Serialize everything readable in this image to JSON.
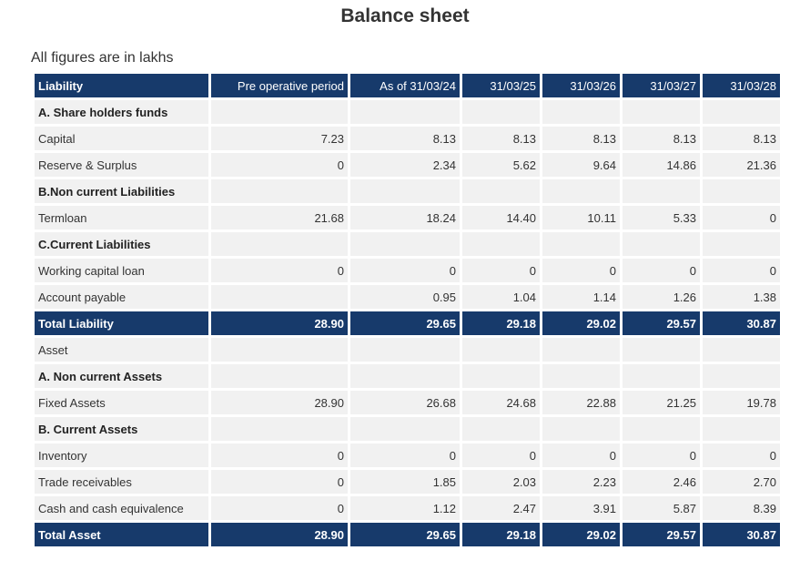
{
  "title": "Balance sheet",
  "note": "All figures are in lakhs",
  "columns": [
    "Liability",
    "Pre operative period",
    "As of 31/03/24",
    "31/03/25",
    "31/03/26",
    "31/03/27",
    "31/03/28"
  ],
  "rows": [
    {
      "kind": "section",
      "label": "A. Share holders funds",
      "values": [
        "",
        "",
        "",
        "",
        "",
        ""
      ]
    },
    {
      "kind": "row",
      "label": "Capital",
      "values": [
        "7.23",
        "8.13",
        "8.13",
        "8.13",
        "8.13",
        "8.13"
      ]
    },
    {
      "kind": "row",
      "label": "Reserve & Surplus",
      "values": [
        "0",
        "2.34",
        "5.62",
        "9.64",
        "14.86",
        "21.36"
      ]
    },
    {
      "kind": "section",
      "label": "B.Non current Liabilities",
      "values": [
        "",
        "",
        "",
        "",
        "",
        ""
      ]
    },
    {
      "kind": "row",
      "label": "Termloan",
      "values": [
        "21.68",
        "18.24",
        "14.40",
        "10.11",
        "5.33",
        "0"
      ]
    },
    {
      "kind": "section",
      "label": "C.Current Liabilities",
      "values": [
        "",
        "",
        "",
        "",
        "",
        ""
      ]
    },
    {
      "kind": "row",
      "label": "Working capital loan",
      "values": [
        "0",
        "0",
        "0",
        "0",
        "0",
        "0"
      ]
    },
    {
      "kind": "row",
      "label": "Account payable",
      "values": [
        "",
        "0.95",
        "1.04",
        "1.14",
        "1.26",
        "1.38"
      ]
    },
    {
      "kind": "total",
      "label": "Total Liability",
      "values": [
        "28.90",
        "29.65",
        "29.18",
        "29.02",
        "29.57",
        "30.87"
      ]
    },
    {
      "kind": "row",
      "label": "Asset",
      "values": [
        "",
        "",
        "",
        "",
        "",
        ""
      ]
    },
    {
      "kind": "section",
      "label": "A. Non current Assets",
      "values": [
        "",
        "",
        "",
        "",
        "",
        ""
      ]
    },
    {
      "kind": "row",
      "label": "Fixed Assets",
      "values": [
        "28.90",
        "26.68",
        "24.68",
        "22.88",
        "21.25",
        "19.78"
      ]
    },
    {
      "kind": "section",
      "label": "B. Current Assets",
      "values": [
        "",
        "",
        "",
        "",
        "",
        ""
      ]
    },
    {
      "kind": "row",
      "label": "Inventory",
      "values": [
        "0",
        "0",
        "0",
        "0",
        "0",
        "0"
      ]
    },
    {
      "kind": "row",
      "label": "Trade receivables",
      "values": [
        "0",
        "1.85",
        "2.03",
        "2.23",
        "2.46",
        "2.70"
      ]
    },
    {
      "kind": "row",
      "label": "Cash and cash equivalence",
      "values": [
        "0",
        "1.12",
        "2.47",
        "3.91",
        "5.87",
        "8.39"
      ]
    },
    {
      "kind": "total",
      "label": "Total Asset",
      "values": [
        "28.90",
        "29.65",
        "29.18",
        "29.02",
        "29.57",
        "30.87"
      ]
    }
  ]
}
